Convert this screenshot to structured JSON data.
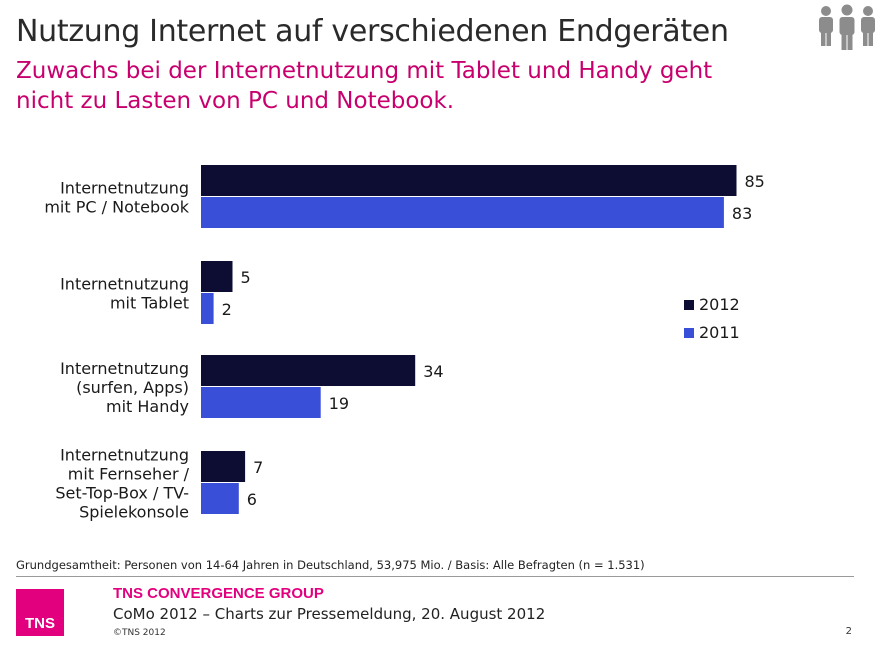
{
  "header": {
    "title": "Nutzung Internet auf verschiedenen Endgeräten",
    "subtitle_line1": "Zuwachs bei der Internetnutzung mit Tablet und Handy geht",
    "subtitle_line2": "nicht zu Lasten von PC und Notebook."
  },
  "icon": "people-group-icon",
  "chart_data": {
    "type": "bar",
    "orientation": "horizontal",
    "categories": [
      [
        "Internetnutzung",
        "mit PC / Notebook"
      ],
      [
        "Internetnutzung",
        "mit Tablet"
      ],
      [
        "Internetnutzung",
        "(surfen, Apps)",
        "mit Handy"
      ],
      [
        "Internetnutzung",
        "mit Fernseher /",
        "Set-Top-Box / TV-",
        "Spielekonsole"
      ]
    ],
    "series": [
      {
        "name": "2012",
        "color": "#0d0d33",
        "values": [
          85,
          5,
          34,
          7
        ]
      },
      {
        "name": "2011",
        "color": "#3a4fd8",
        "values": [
          83,
          2,
          19,
          6
        ]
      }
    ],
    "xlim": [
      0,
      100
    ],
    "grid": false,
    "legend_position": "right",
    "data_labels": true
  },
  "footer": {
    "note": "Grundgesamtheit: Personen von 14-64 Jahren in Deutschland, 53,975 Mio. / Basis: Alle Befragten (n = 1.531)",
    "logo_text": "TNS",
    "company": "TNS CONVERGENCE GROUP",
    "press": "CoMo 2012 – Charts zur Pressemeldung, 20. August 2012",
    "copyright": "©TNS 2012",
    "page": "2"
  },
  "colors": {
    "accent": "#c8006e",
    "brand": "#e3007e"
  }
}
